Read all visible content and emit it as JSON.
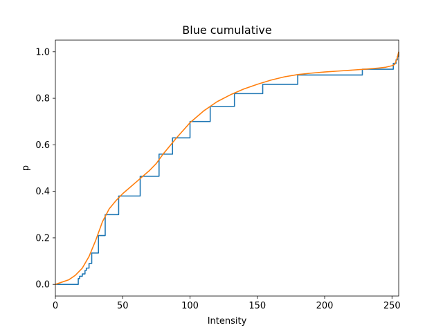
{
  "chart_data": {
    "type": "line",
    "title": "Blue cumulative",
    "xlabel": "Intensity",
    "ylabel": "p",
    "xlim": [
      0,
      255
    ],
    "ylim": [
      -0.05,
      1.05
    ],
    "x_ticks": [
      0,
      50,
      100,
      150,
      200,
      250
    ],
    "y_ticks": [
      0.0,
      0.2,
      0.4,
      0.6,
      0.8,
      1.0
    ],
    "grid": false,
    "series": [
      {
        "color": "#1f77b4",
        "step": "post",
        "x": [
          0,
          15,
          17,
          18,
          20,
          22,
          23,
          25,
          27,
          30,
          32,
          35,
          37,
          40,
          47,
          50,
          63,
          70,
          77,
          80,
          87,
          90,
          100,
          105,
          115,
          120,
          133,
          140,
          154,
          160,
          180,
          200,
          228,
          240,
          251,
          253,
          254,
          255
        ],
        "y": [
          0.0,
          0.0,
          0.025,
          0.035,
          0.045,
          0.06,
          0.07,
          0.09,
          0.135,
          0.135,
          0.21,
          0.21,
          0.3,
          0.3,
          0.38,
          0.38,
          0.465,
          0.465,
          0.56,
          0.56,
          0.63,
          0.63,
          0.7,
          0.7,
          0.765,
          0.765,
          0.82,
          0.82,
          0.86,
          0.86,
          0.9,
          0.9,
          0.925,
          0.925,
          0.95,
          0.965,
          0.98,
          1.0
        ]
      },
      {
        "color": "#ff7f0e",
        "step": "none",
        "x": [
          0,
          5,
          10,
          15,
          20,
          25,
          30,
          35,
          40,
          45,
          50,
          55,
          60,
          65,
          70,
          75,
          80,
          90,
          100,
          110,
          120,
          130,
          140,
          150,
          160,
          170,
          180,
          190,
          200,
          210,
          220,
          230,
          240,
          245,
          250,
          252,
          254,
          255
        ],
        "y": [
          0.0,
          0.01,
          0.02,
          0.04,
          0.07,
          0.12,
          0.19,
          0.27,
          0.325,
          0.36,
          0.39,
          0.415,
          0.44,
          0.465,
          0.49,
          0.52,
          0.56,
          0.63,
          0.695,
          0.745,
          0.785,
          0.815,
          0.84,
          0.86,
          0.878,
          0.892,
          0.902,
          0.908,
          0.913,
          0.917,
          0.921,
          0.925,
          0.93,
          0.933,
          0.94,
          0.945,
          0.975,
          1.0
        ]
      }
    ]
  }
}
